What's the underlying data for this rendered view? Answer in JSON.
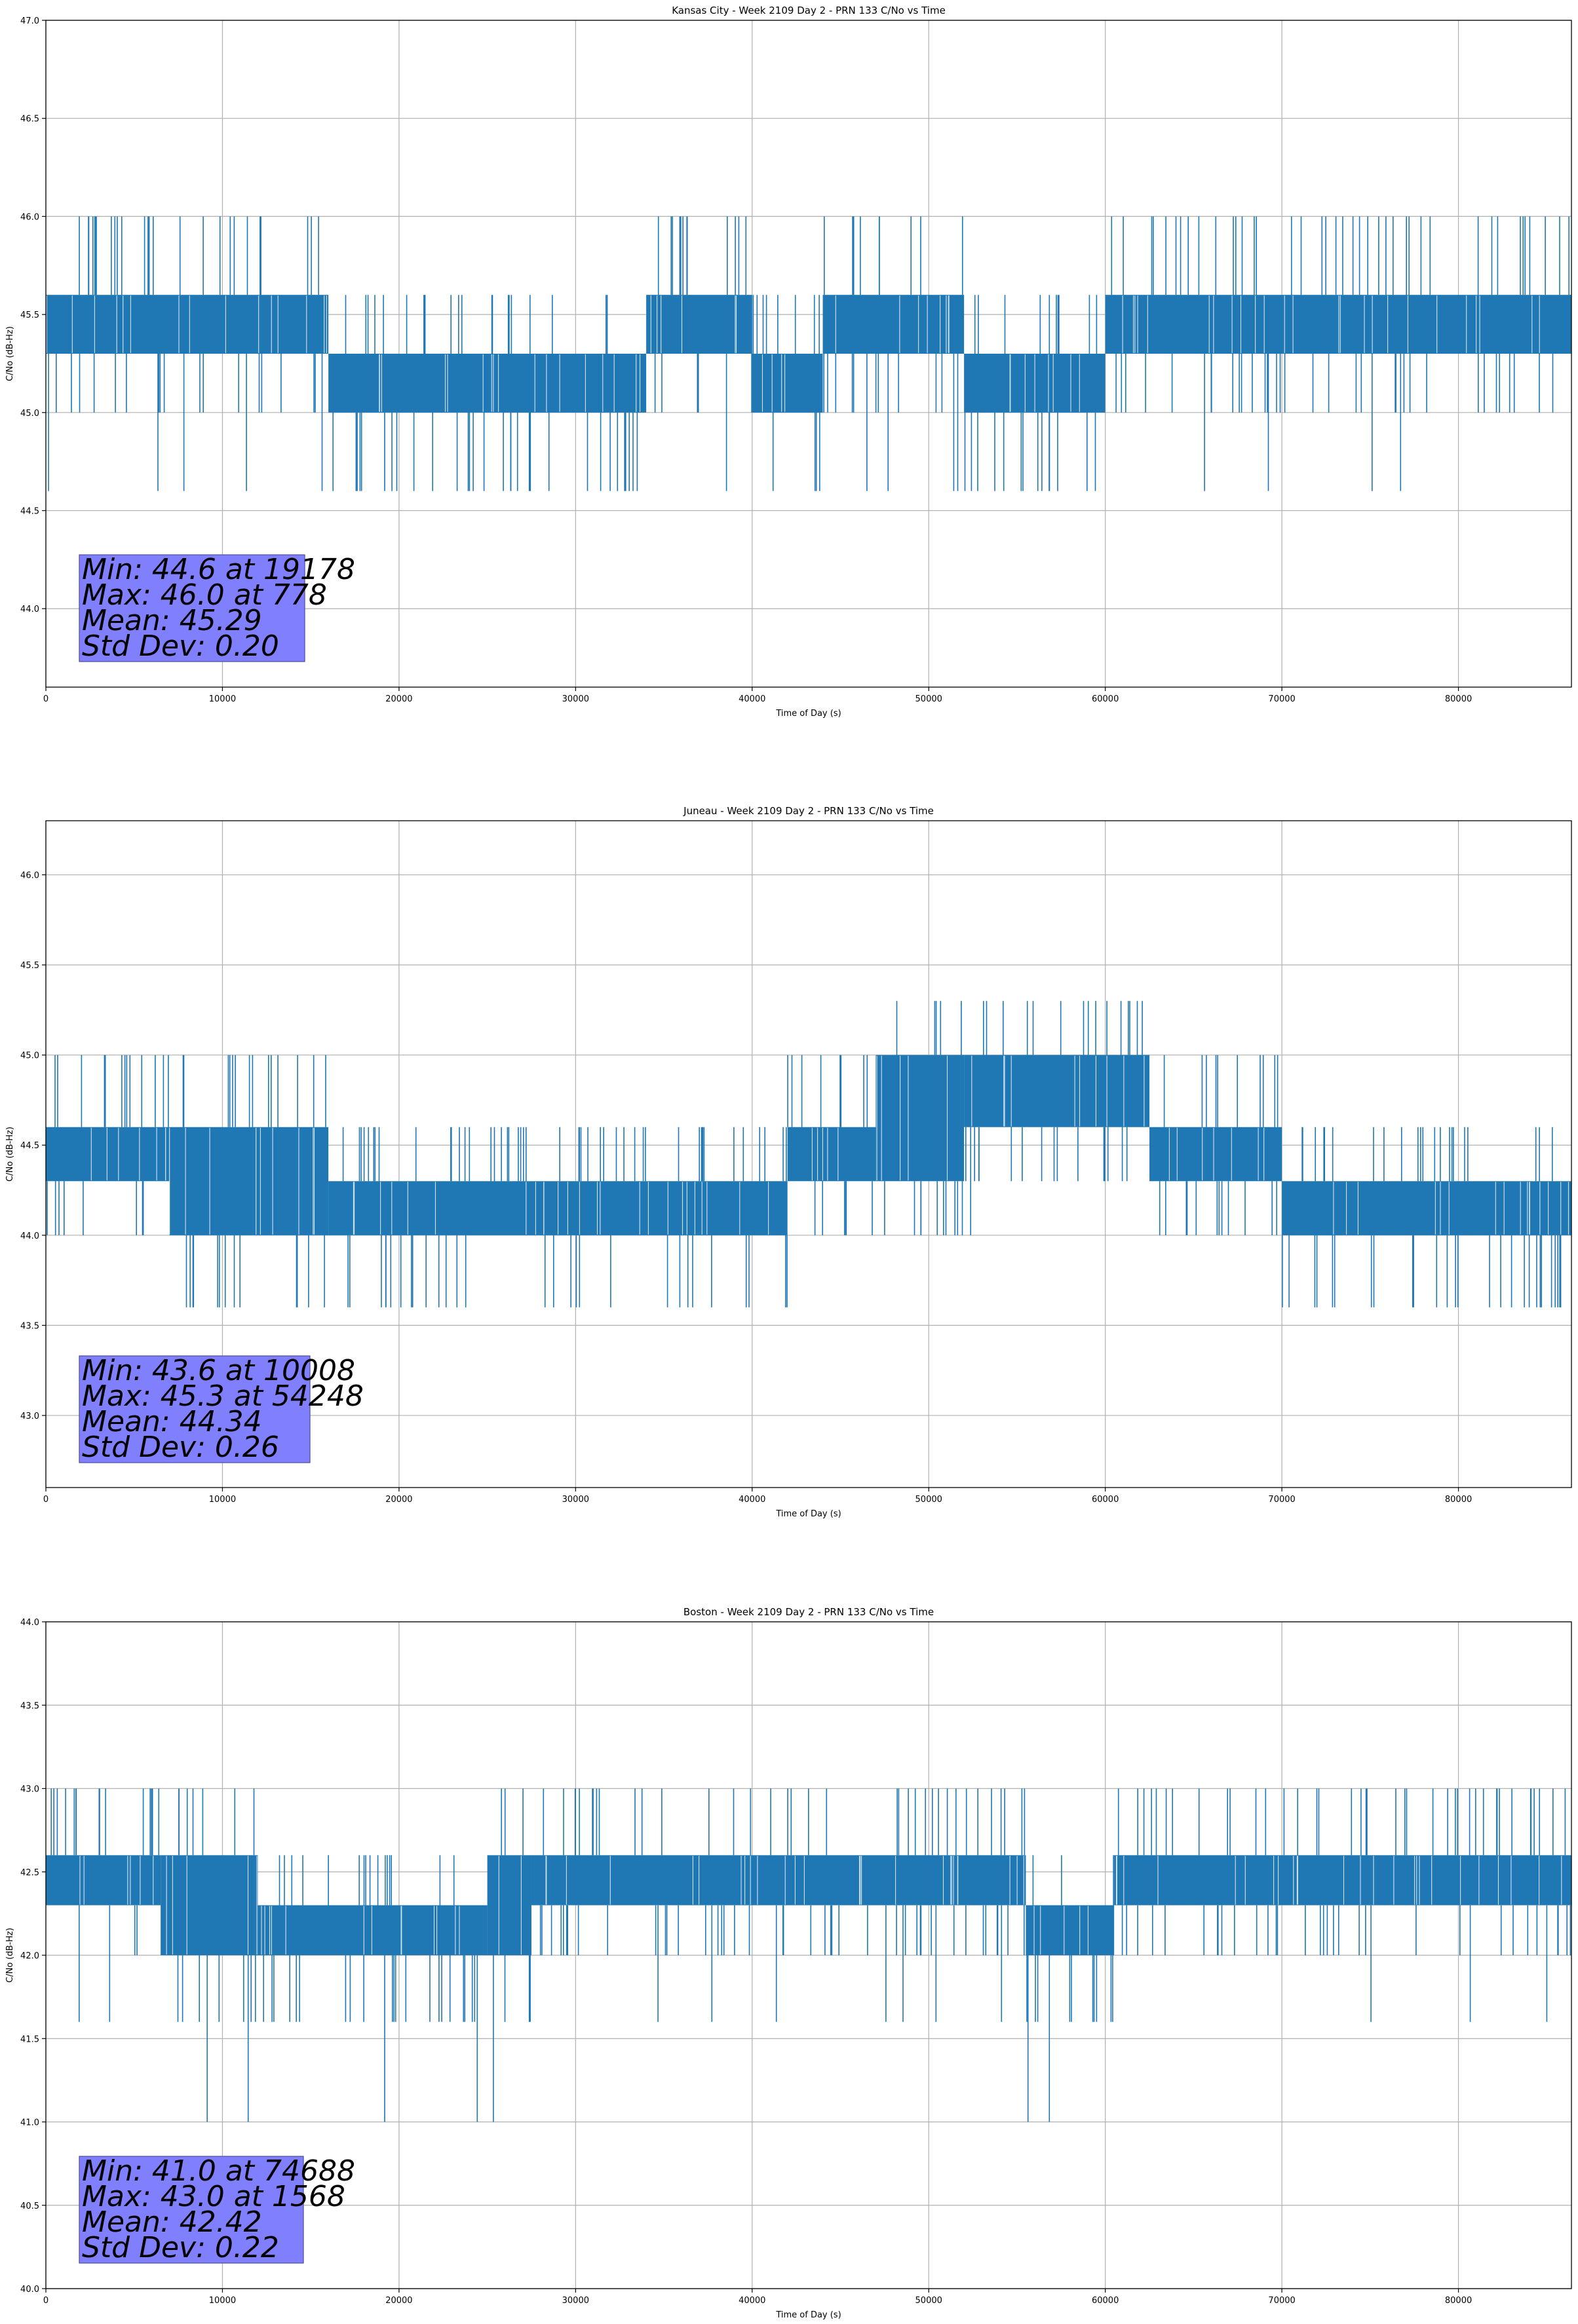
{
  "chart_data": [
    {
      "type": "line",
      "title": "Kansas City - Week 2109 Day 2 - PRN 133 C/No vs Time",
      "xlabel": "Time of Day (s)",
      "ylabel": "C/No (dB-Hz)",
      "xlim": [
        0,
        86400
      ],
      "ylim": [
        43.6,
        47.0
      ],
      "xticks": [
        0,
        10000,
        20000,
        30000,
        40000,
        50000,
        60000,
        70000,
        80000
      ],
      "xtick_labels": [
        "0",
        "10000",
        "20000",
        "30000",
        "40000",
        "50000",
        "60000",
        "70000",
        "80000"
      ],
      "yticks": [
        44.0,
        44.5,
        45.0,
        45.5,
        46.0,
        46.5,
        47.0
      ],
      "ytick_labels": [
        "44.0",
        "44.5",
        "45.0",
        "45.5",
        "46.0",
        "46.5",
        "47.0"
      ],
      "grid": true,
      "color": "#1f77b4",
      "levels": [
        44.6,
        45.0,
        45.3,
        45.6,
        46.0
      ],
      "segments": [
        {
          "x": [
            0,
            16000
          ],
          "low": 45.3,
          "high": 45.6
        },
        {
          "x": [
            16000,
            34000
          ],
          "low": 45.0,
          "high": 45.3
        },
        {
          "x": [
            34000,
            40000
          ],
          "low": 45.3,
          "high": 45.6
        },
        {
          "x": [
            40000,
            44000
          ],
          "low": 45.0,
          "high": 45.3
        },
        {
          "x": [
            44000,
            52000
          ],
          "low": 45.3,
          "high": 45.6
        },
        {
          "x": [
            52000,
            60000
          ],
          "low": 45.0,
          "high": 45.3
        },
        {
          "x": [
            60000,
            86400
          ],
          "low": 45.3,
          "high": 45.6
        }
      ],
      "stats": {
        "min_line": "Min: 44.6 at 19178",
        "max_line": "Max: 46.0 at 778",
        "mean_line": "Mean: 45.29",
        "std_line": "Std Dev: 0.20"
      }
    },
    {
      "type": "line",
      "title": "Juneau - Week 2109 Day 2 - PRN 133 C/No vs Time",
      "xlabel": "Time of Day (s)",
      "ylabel": "C/No (dB-Hz)",
      "xlim": [
        0,
        86400
      ],
      "ylim": [
        42.6,
        46.3
      ],
      "xticks": [
        0,
        10000,
        20000,
        30000,
        40000,
        50000,
        60000,
        70000,
        80000
      ],
      "xtick_labels": [
        "0",
        "10000",
        "20000",
        "30000",
        "40000",
        "50000",
        "60000",
        "70000",
        "80000"
      ],
      "yticks": [
        43.0,
        43.5,
        44.0,
        44.5,
        45.0,
        45.5,
        46.0
      ],
      "ytick_labels": [
        "43.0",
        "43.5",
        "44.0",
        "44.5",
        "45.0",
        "45.5",
        "46.0"
      ],
      "grid": true,
      "color": "#1f77b4",
      "levels": [
        43.6,
        44.0,
        44.3,
        44.6,
        45.0,
        45.3
      ],
      "segments": [
        {
          "x": [
            0,
            7000
          ],
          "low": 44.3,
          "high": 44.6
        },
        {
          "x": [
            7000,
            16000
          ],
          "low": 44.0,
          "high": 44.6
        },
        {
          "x": [
            16000,
            42000
          ],
          "low": 44.0,
          "high": 44.3
        },
        {
          "x": [
            42000,
            47000
          ],
          "low": 44.3,
          "high": 44.6
        },
        {
          "x": [
            47000,
            52000
          ],
          "low": 44.3,
          "high": 45.0
        },
        {
          "x": [
            52000,
            62500
          ],
          "low": 44.6,
          "high": 45.0
        },
        {
          "x": [
            62500,
            70000
          ],
          "low": 44.3,
          "high": 44.6
        },
        {
          "x": [
            70000,
            86400
          ],
          "low": 44.0,
          "high": 44.3
        }
      ],
      "stats": {
        "min_line": "Min: 43.6 at 10008",
        "max_line": "Max: 45.3 at 54248",
        "mean_line": "Mean: 44.34",
        "std_line": "Std Dev: 0.26"
      }
    },
    {
      "type": "line",
      "title": "Boston - Week 2109 Day 2 - PRN 133 C/No vs Time",
      "xlabel": "Time of Day (s)",
      "ylabel": "C/No (dB-Hz)",
      "xlim": [
        0,
        86400
      ],
      "ylim": [
        40.0,
        44.0
      ],
      "xticks": [
        0,
        10000,
        20000,
        30000,
        40000,
        50000,
        60000,
        70000,
        80000
      ],
      "xtick_labels": [
        "0",
        "10000",
        "20000",
        "30000",
        "40000",
        "50000",
        "60000",
        "70000",
        "80000"
      ],
      "yticks": [
        40.0,
        40.5,
        41.0,
        41.5,
        42.0,
        42.5,
        43.0,
        43.5,
        44.0
      ],
      "ytick_labels": [
        "40.0",
        "40.5",
        "41.0",
        "41.5",
        "42.0",
        "42.5",
        "43.0",
        "43.5",
        "44.0"
      ],
      "grid": true,
      "color": "#1f77b4",
      "levels": [
        41.0,
        41.6,
        42.0,
        42.3,
        42.6,
        43.0
      ],
      "segments": [
        {
          "x": [
            0,
            6500
          ],
          "low": 42.3,
          "high": 42.6
        },
        {
          "x": [
            6500,
            12000
          ],
          "low": 42.0,
          "high": 42.6
        },
        {
          "x": [
            12000,
            25000
          ],
          "low": 42.0,
          "high": 42.3
        },
        {
          "x": [
            25000,
            27500
          ],
          "low": 42.0,
          "high": 42.6
        },
        {
          "x": [
            27500,
            55500
          ],
          "low": 42.3,
          "high": 42.6
        },
        {
          "x": [
            55500,
            60500
          ],
          "low": 42.0,
          "high": 42.3
        },
        {
          "x": [
            60500,
            86400
          ],
          "low": 42.3,
          "high": 42.6
        }
      ],
      "stats": {
        "min_line": "Min: 41.0 at 74688",
        "max_line": "Max: 43.0 at 1568",
        "mean_line": "Mean: 42.42",
        "std_line": "Std Dev: 0.22"
      }
    }
  ]
}
